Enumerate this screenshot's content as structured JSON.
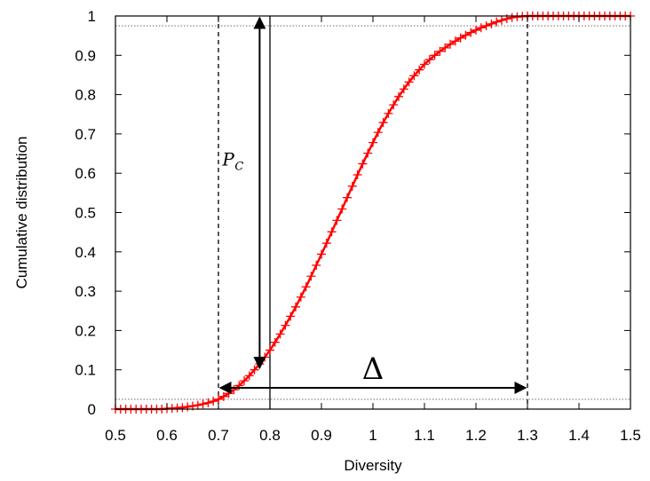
{
  "chart_data": {
    "type": "line",
    "title": "",
    "xlabel": "Diversity",
    "ylabel": "Cumulative distribution",
    "xlim": [
      0.5,
      1.5
    ],
    "ylim": [
      0,
      1
    ],
    "xticks": [
      "0.5",
      "0.6",
      "0.7",
      "0.8",
      "0.9",
      "1",
      "1.1",
      "1.2",
      "1.3",
      "1.4",
      "1.5"
    ],
    "yticks": [
      "0",
      "0.1",
      "0.2",
      "0.3",
      "0.4",
      "0.5",
      "0.6",
      "0.7",
      "0.8",
      "0.9",
      "1"
    ],
    "series": [
      {
        "color": "#ff0000",
        "marker": "plus",
        "x": [
          0.5,
          0.51,
          0.52,
          0.53,
          0.54,
          0.55,
          0.56,
          0.57,
          0.58,
          0.59,
          0.6,
          0.61,
          0.62,
          0.63,
          0.64,
          0.65,
          0.66,
          0.67,
          0.68,
          0.69,
          0.7,
          0.71,
          0.72,
          0.73,
          0.74,
          0.75,
          0.76,
          0.77,
          0.78,
          0.79,
          0.8,
          0.81,
          0.82,
          0.83,
          0.84,
          0.85,
          0.86,
          0.87,
          0.88,
          0.89,
          0.9,
          0.91,
          0.92,
          0.93,
          0.94,
          0.95,
          0.96,
          0.97,
          0.98,
          0.99,
          1.0,
          1.01,
          1.02,
          1.03,
          1.04,
          1.05,
          1.06,
          1.07,
          1.08,
          1.09,
          1.1,
          1.11,
          1.12,
          1.13,
          1.14,
          1.15,
          1.16,
          1.17,
          1.18,
          1.19,
          1.2,
          1.21,
          1.22,
          1.23,
          1.24,
          1.25,
          1.26,
          1.27,
          1.28,
          1.29,
          1.3,
          1.31,
          1.32,
          1.33,
          1.34,
          1.35,
          1.36,
          1.37,
          1.38,
          1.39,
          1.4,
          1.41,
          1.42,
          1.43,
          1.44,
          1.45,
          1.46,
          1.47,
          1.48,
          1.49,
          1.5
        ],
        "y": [
          0.0,
          0.0,
          0.0,
          0.0,
          0.0,
          0.0,
          0.0,
          0.0,
          0.0,
          0.0,
          0.001,
          0.002,
          0.003,
          0.004,
          0.006,
          0.008,
          0.01,
          0.013,
          0.016,
          0.02,
          0.025,
          0.032,
          0.04,
          0.049,
          0.06,
          0.072,
          0.085,
          0.1,
          0.115,
          0.132,
          0.15,
          0.17,
          0.191,
          0.213,
          0.236,
          0.26,
          0.285,
          0.311,
          0.338,
          0.366,
          0.394,
          0.422,
          0.451,
          0.48,
          0.509,
          0.538,
          0.567,
          0.596,
          0.624,
          0.651,
          0.678,
          0.704,
          0.729,
          0.752,
          0.774,
          0.795,
          0.814,
          0.832,
          0.848,
          0.863,
          0.877,
          0.889,
          0.9,
          0.91,
          0.919,
          0.928,
          0.936,
          0.944,
          0.951,
          0.958,
          0.964,
          0.97,
          0.975,
          0.98,
          0.985,
          0.989,
          0.993,
          0.996,
          0.998,
          0.999,
          1.0,
          1.0,
          1.0,
          1.0,
          1.0,
          1.0,
          1.0,
          1.0,
          1.0,
          1.0,
          1.0,
          1.0,
          1.0,
          1.0,
          1.0,
          1.0,
          1.0,
          1.0,
          1.0,
          1.0,
          1.0
        ]
      }
    ],
    "reference_lines": {
      "vertical_dashed_x": [
        0.7,
        1.3
      ],
      "vertical_solid_x": 0.8,
      "horizontal_dotted_y": [
        0.025,
        0.975
      ]
    },
    "annotations": {
      "pc": {
        "text": "P",
        "subscript": "C",
        "arrow_x": 0.78,
        "arrow_y": [
          0.1,
          1.0
        ]
      },
      "delta": {
        "text": "Δ",
        "arrow_x": [
          0.7,
          1.3
        ],
        "arrow_y": 0.025
      }
    }
  }
}
